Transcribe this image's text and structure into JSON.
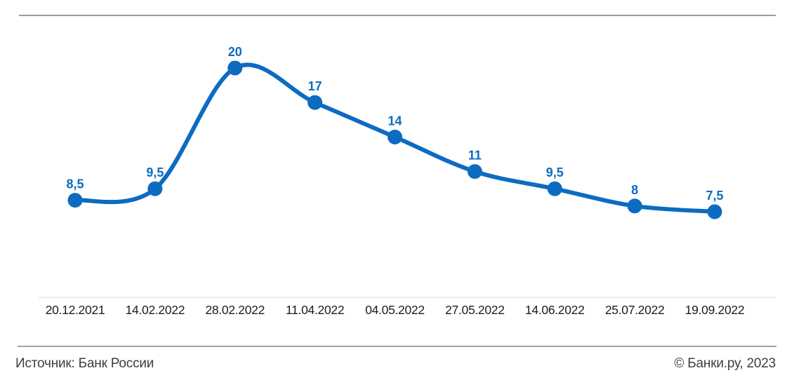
{
  "chart_data": {
    "type": "line",
    "categories": [
      "20.12.2021",
      "14.02.2022",
      "28.02.2022",
      "11.04.2022",
      "04.05.2022",
      "27.05.2022",
      "14.06.2022",
      "25.07.2022",
      "19.09.2022"
    ],
    "values": [
      8.5,
      9.5,
      20,
      17,
      14,
      11,
      9.5,
      8,
      7.5
    ],
    "value_labels": [
      "8,5",
      "9,5",
      "20",
      "17",
      "14",
      "11",
      "9,5",
      "8",
      "7,5"
    ],
    "title": "",
    "xlabel": "",
    "ylabel": "",
    "ylim": [
      7.5,
      20
    ],
    "grid": false,
    "legend": "none",
    "line_color": "#0d6bc1",
    "point_color": "#0d6bc1",
    "value_label_color": "#0d6bc1",
    "tick_label_color": "#1c1c1c"
  },
  "footer": {
    "source": "Источник: Банк России",
    "copyright": "© Банки.ру, 2023"
  }
}
